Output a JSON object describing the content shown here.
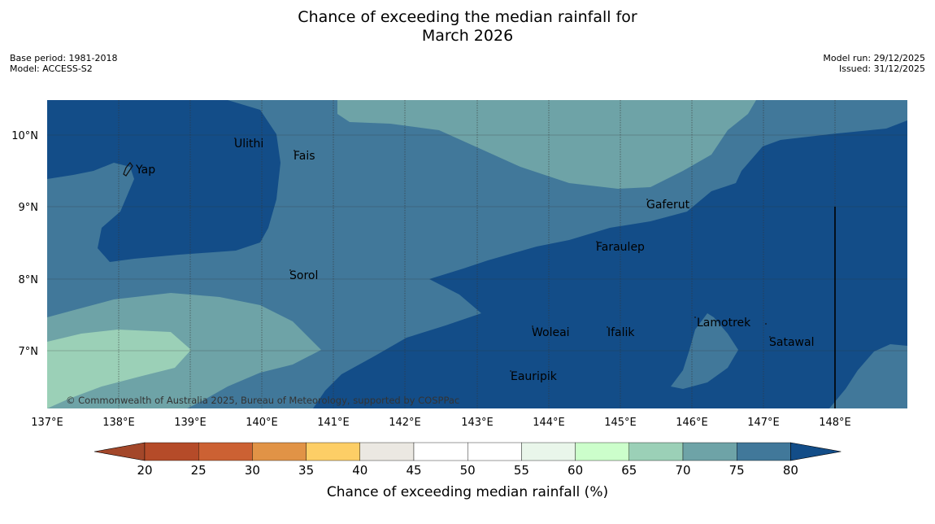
{
  "title_line1": "Chance of exceeding the median rainfall for",
  "title_line2": "March 2026",
  "base_period": "Base period: 1981-2018",
  "model": "Model: ACCESS-S2",
  "model_run": "Model run: 29/12/2025",
  "issued": "Issued: 31/12/2025",
  "copyright": "© Commonwealth of Australia 2025, Bureau of Meteorology, supported by COSPPac",
  "map": {
    "lon_range": [
      137,
      149
    ],
    "lat_range": [
      6.2,
      10.5
    ],
    "lon_ticks": [
      "137°E",
      "138°E",
      "139°E",
      "140°E",
      "141°E",
      "142°E",
      "143°E",
      "144°E",
      "145°E",
      "146°E",
      "147°E",
      "148°E"
    ],
    "lat_ticks": [
      "10°N",
      "9°N",
      "8°N",
      "7°N"
    ],
    "places": [
      {
        "name": "Yap"
      },
      {
        "name": "Ulithi"
      },
      {
        "name": "Fais"
      },
      {
        "name": "Gaferut"
      },
      {
        "name": "Faraulep"
      },
      {
        "name": "Sorol"
      },
      {
        "name": "Woleai"
      },
      {
        "name": "Ifalik"
      },
      {
        "name": "Lamotrek"
      },
      {
        "name": "Satawal"
      },
      {
        "name": "Eauripik"
      }
    ]
  },
  "colorbar": {
    "label": "Chance of exceeding median rainfall (%)",
    "ticks": [
      "20",
      "25",
      "30",
      "35",
      "40",
      "45",
      "50",
      "55",
      "60",
      "65",
      "70",
      "75",
      "80"
    ],
    "colors": [
      "#a3472a",
      "#b54b29",
      "#cc6133",
      "#e19346",
      "#fdce66",
      "#ebe8e2",
      "#ffffff",
      "#ffffff",
      "#e9f6ea",
      "#ccfecb",
      "#9bd0b7",
      "#6ea3a7",
      "#41789a",
      "#134d88"
    ]
  },
  "palette": {
    "class_80_plus": "#134d88",
    "class_75_80": "#41789a",
    "class_70_75": "#6ea3a7",
    "class_65_70": "#9bd0b7"
  }
}
